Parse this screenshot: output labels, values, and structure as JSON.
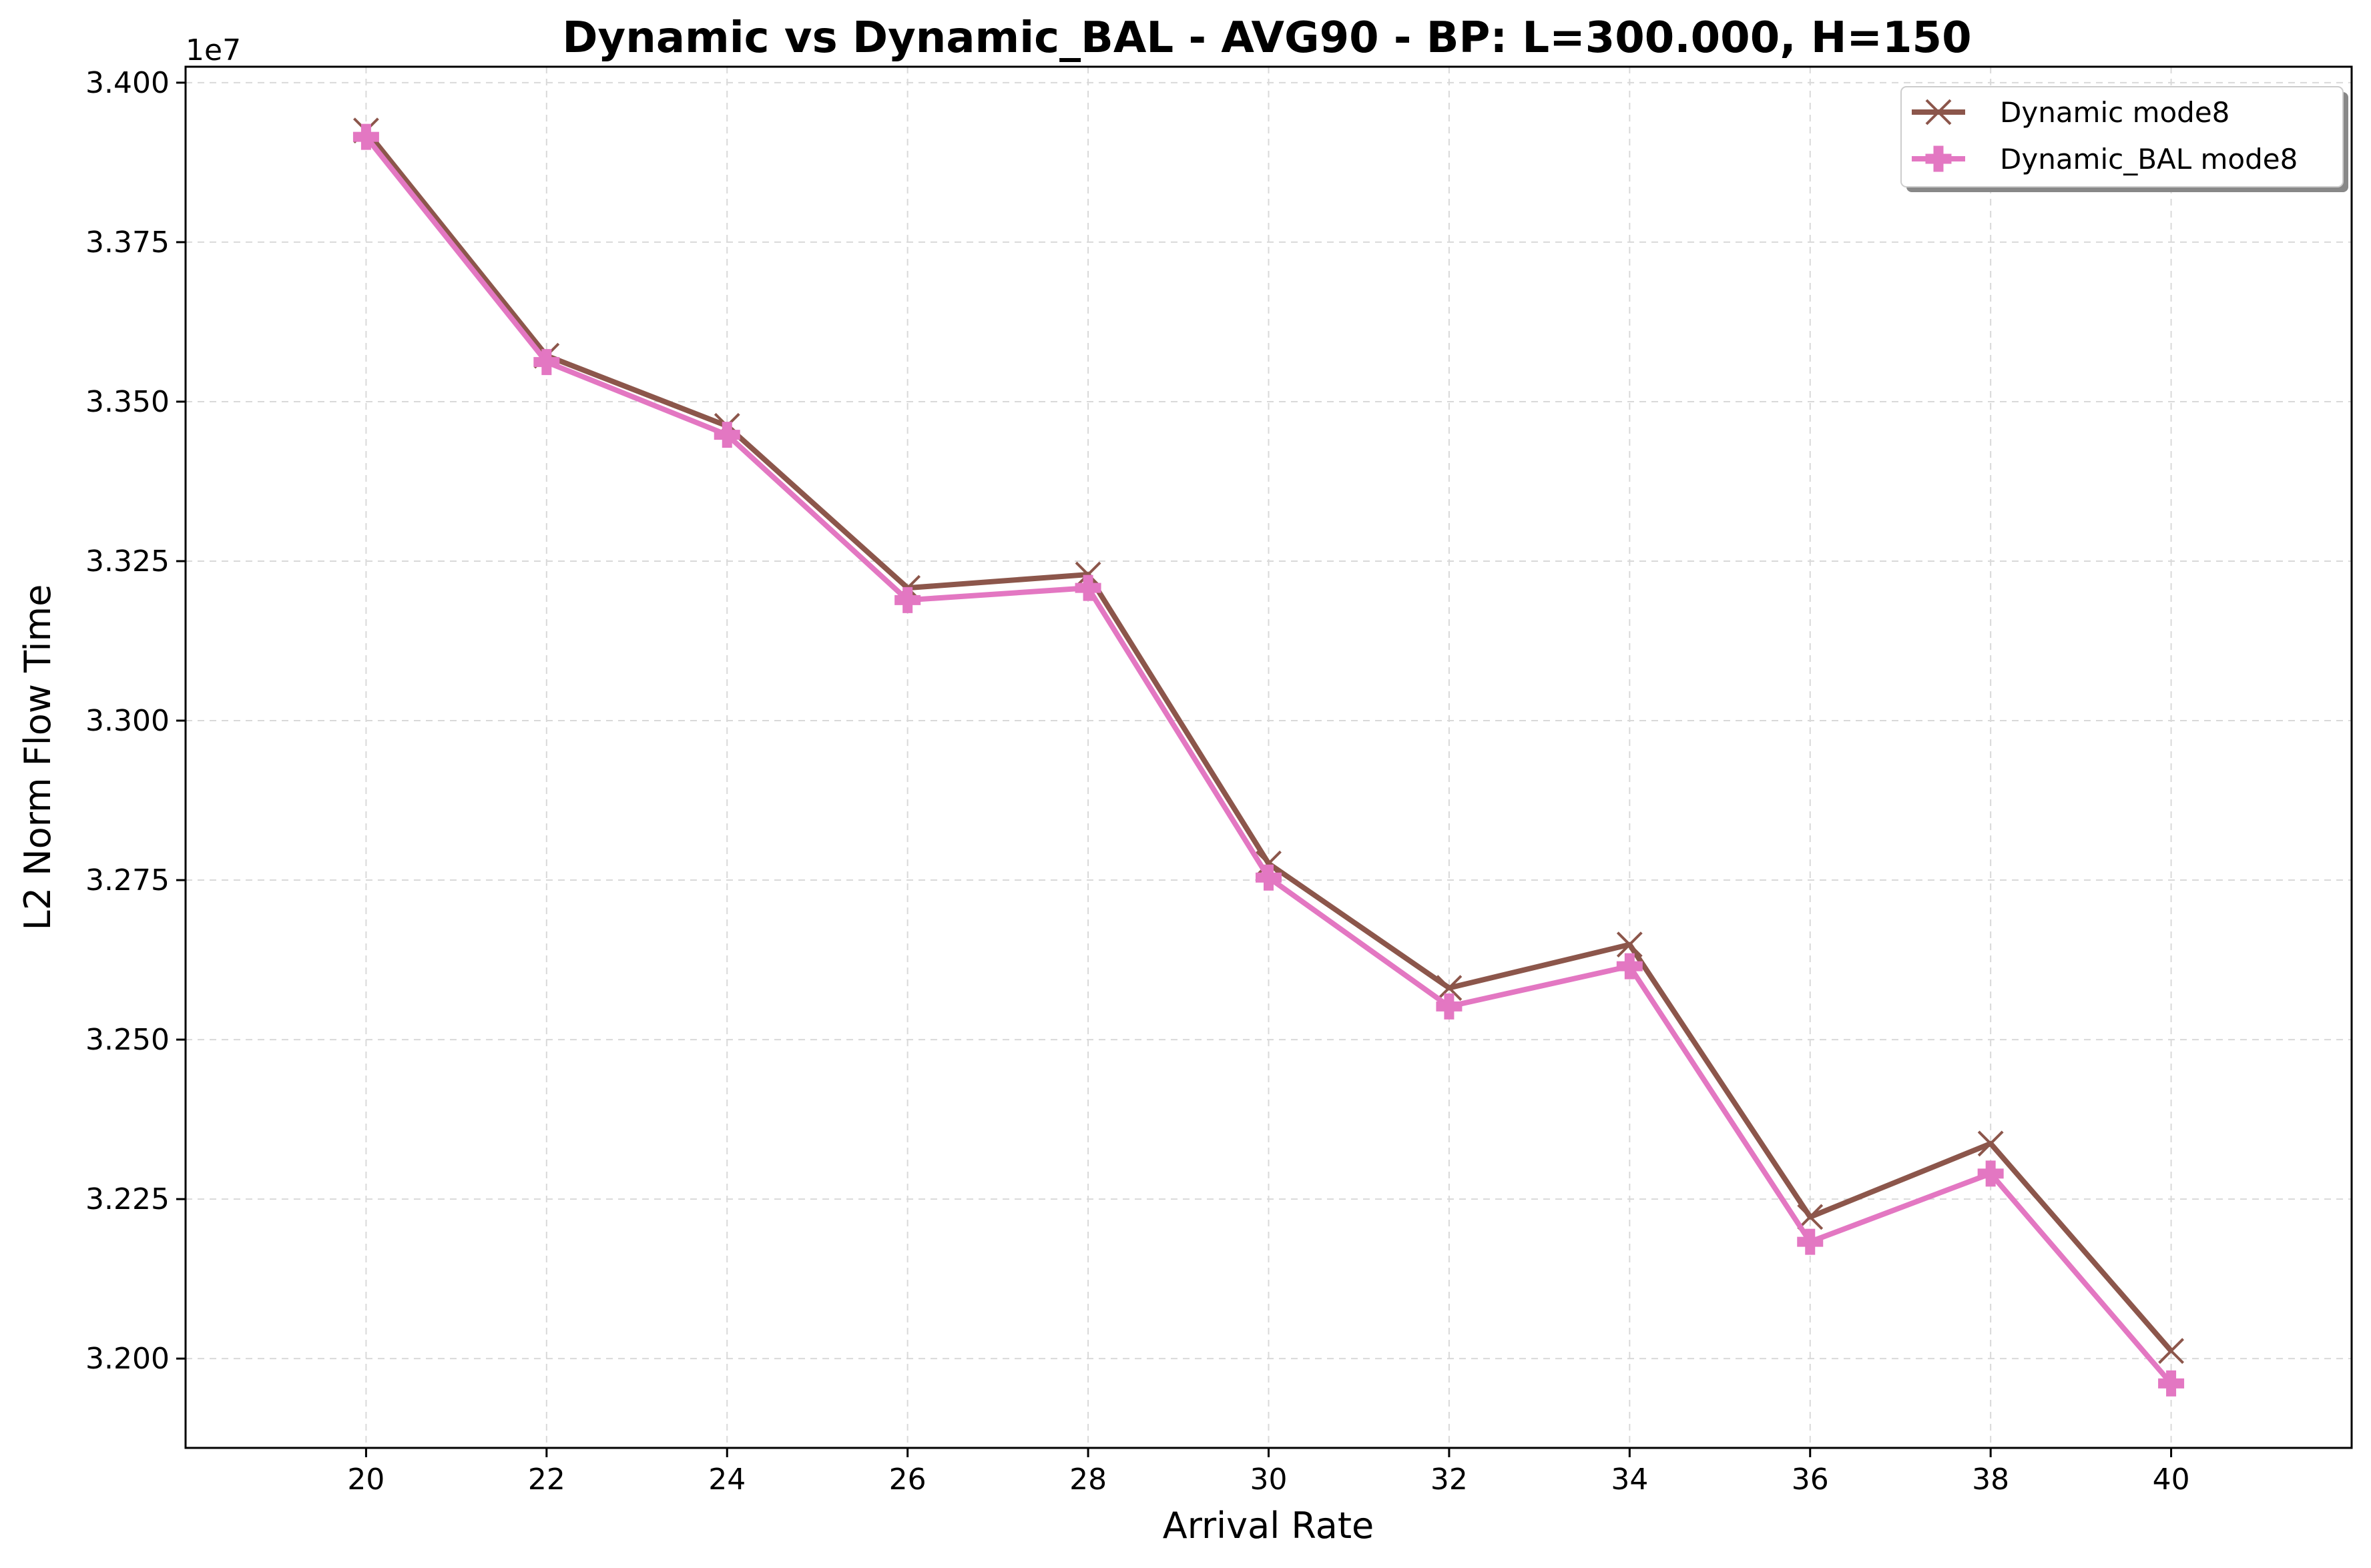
{
  "chart_data": {
    "type": "line",
    "title": "Dynamic vs Dynamic_BAL - AVG90 - BP: L=300.000, H=150",
    "xlabel": "Arrival Rate",
    "ylabel": "L2 Norm Flow Time",
    "y_offset_label": "1e7",
    "xlim": [
      18,
      42
    ],
    "ylim": [
      3.186,
      3.4025
    ],
    "y_scale_factor": 10000000,
    "grid": true,
    "legend_position": "top-right",
    "x_ticks": [
      20,
      22,
      24,
      26,
      28,
      30,
      32,
      34,
      36,
      38,
      40
    ],
    "x_tick_labels": [
      "20",
      "22",
      "24",
      "26",
      "28",
      "30",
      "32",
      "34",
      "36",
      "38",
      "40"
    ],
    "y_ticks": [
      3.2,
      3.225,
      3.25,
      3.275,
      3.3,
      3.325,
      3.35,
      3.375,
      3.4
    ],
    "y_tick_labels": [
      "3.200",
      "3.225",
      "3.250",
      "3.275",
      "3.300",
      "3.325",
      "3.350",
      "3.375",
      "3.400"
    ],
    "x": [
      20,
      22,
      24,
      26,
      28,
      30,
      32,
      34,
      36,
      38,
      40
    ],
    "series": [
      {
        "name": "Dynamic mode8",
        "color": "#8c564b",
        "marker": "x",
        "values": [
          3.3925,
          3.3572,
          3.3462,
          3.3208,
          3.3229,
          3.2776,
          3.2581,
          3.2649,
          3.2222,
          3.2337,
          3.2012
        ]
      },
      {
        "name": "Dynamic_BAL mode8",
        "color": "#e377c2",
        "marker": "plus",
        "values": [
          3.3915,
          3.3562,
          3.3448,
          3.3189,
          3.3208,
          3.2754,
          3.2552,
          3.2615,
          3.2183,
          3.229,
          3.1961
        ]
      }
    ]
  }
}
